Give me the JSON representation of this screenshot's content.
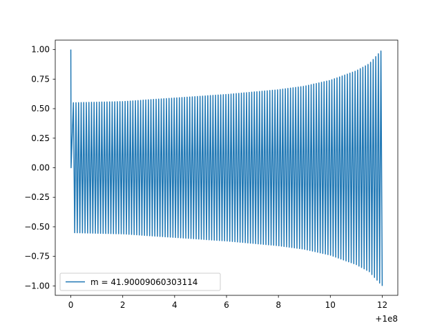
{
  "chart_data": {
    "type": "line",
    "title": "",
    "xlabel": "",
    "ylabel": "",
    "x_offset_label": "+1e8",
    "xlim": [
      -0.6,
      12.6
    ],
    "ylim": [
      -1.08,
      1.08
    ],
    "xticks": [
      0,
      2,
      4,
      6,
      8,
      10,
      12
    ],
    "xtick_labels": [
      "0",
      "2",
      "4",
      "6",
      "8",
      "10",
      "12"
    ],
    "yticks": [
      1.0,
      0.75,
      0.5,
      0.25,
      0.0,
      -0.25,
      -0.5,
      -0.75,
      -1.0
    ],
    "ytick_labels": [
      "1.00",
      "0.75",
      "0.50",
      "0.25",
      "0.00",
      "−0.25",
      "−0.50",
      "−0.75",
      "−1.00"
    ],
    "grid": false,
    "legend_position": "lower-left",
    "series": [
      {
        "name": "m = 41.90009060303114",
        "color": "#1f77b4",
        "start_x": 0,
        "end_x": 12,
        "cycles": 120,
        "envelope": {
          "x": [
            0,
            0.05,
            0.1,
            2,
            4,
            6,
            8,
            9,
            10,
            11,
            11.5,
            12
          ],
          "amplitude": [
            1.0,
            0.55,
            0.55,
            0.56,
            0.59,
            0.62,
            0.66,
            0.69,
            0.74,
            0.82,
            0.88,
            1.0
          ]
        }
      }
    ]
  }
}
